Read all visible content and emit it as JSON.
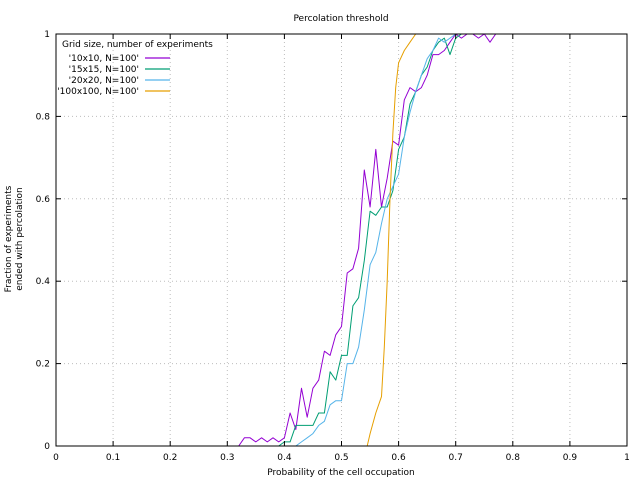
{
  "chart_data": {
    "type": "line",
    "title": "Percolation threshold",
    "xlabel": "Probability of the cell occupation",
    "ylabel_lines": [
      "Fraction of experiments",
      "ended with percolation"
    ],
    "xlim": [
      0,
      1
    ],
    "ylim": [
      0,
      1
    ],
    "x_ticks": [
      "0",
      "0.1",
      "0.2",
      "0.3",
      "0.4",
      "0.5",
      "0.6",
      "0.7",
      "0.8",
      "0.9",
      "1"
    ],
    "y_ticks": [
      "0",
      "0.2",
      "0.4",
      "0.6",
      "0.8",
      "1"
    ],
    "grid": true,
    "legend_title": "Grid size, number of experiments",
    "legend_position": "top-left",
    "series": [
      {
        "name": "'10x10, N=100'",
        "color": "#9400d3",
        "x": [
          0,
          0.32,
          0.33,
          0.34,
          0.35,
          0.36,
          0.37,
          0.38,
          0.39,
          0.4,
          0.41,
          0.42,
          0.43,
          0.44,
          0.45,
          0.46,
          0.47,
          0.48,
          0.49,
          0.5,
          0.51,
          0.52,
          0.53,
          0.54,
          0.55,
          0.56,
          0.57,
          0.58,
          0.59,
          0.6,
          0.61,
          0.62,
          0.63,
          0.64,
          0.65,
          0.66,
          0.67,
          0.68,
          0.69,
          0.7,
          0.71,
          0.72,
          0.73,
          0.74,
          0.75,
          0.76,
          0.77,
          0.78,
          1.0
        ],
        "y": [
          0,
          0,
          0.02,
          0.02,
          0.01,
          0.02,
          0.01,
          0.02,
          0.01,
          0.02,
          0.08,
          0.04,
          0.14,
          0.07,
          0.14,
          0.16,
          0.23,
          0.22,
          0.27,
          0.29,
          0.42,
          0.43,
          0.48,
          0.67,
          0.58,
          0.72,
          0.58,
          0.65,
          0.74,
          0.73,
          0.84,
          0.87,
          0.86,
          0.87,
          0.9,
          0.95,
          0.95,
          0.96,
          0.98,
          1,
          0.99,
          1,
          1,
          0.99,
          1,
          0.98,
          1,
          1,
          1
        ]
      },
      {
        "name": "'15x15, N=100'",
        "color": "#009e73",
        "x": [
          0,
          0.38,
          0.39,
          0.4,
          0.41,
          0.42,
          0.43,
          0.44,
          0.45,
          0.46,
          0.47,
          0.48,
          0.49,
          0.5,
          0.51,
          0.52,
          0.53,
          0.54,
          0.55,
          0.56,
          0.57,
          0.58,
          0.59,
          0.6,
          0.61,
          0.62,
          0.63,
          0.64,
          0.65,
          0.66,
          0.67,
          0.68,
          0.69,
          0.7,
          0.71,
          0.72,
          0.73,
          1.0
        ],
        "y": [
          0,
          0,
          0,
          0.01,
          0.01,
          0.05,
          0.05,
          0.05,
          0.05,
          0.08,
          0.08,
          0.18,
          0.16,
          0.22,
          0.22,
          0.34,
          0.36,
          0.45,
          0.57,
          0.56,
          0.58,
          0.58,
          0.62,
          0.72,
          0.75,
          0.83,
          0.86,
          0.9,
          0.92,
          0.96,
          0.98,
          0.99,
          0.95,
          0.99,
          1,
          1,
          1,
          1
        ]
      },
      {
        "name": "'20x20, N=100'",
        "color": "#56b4e9",
        "x": [
          0,
          0.41,
          0.42,
          0.43,
          0.44,
          0.45,
          0.46,
          0.47,
          0.48,
          0.49,
          0.5,
          0.51,
          0.52,
          0.53,
          0.54,
          0.55,
          0.56,
          0.57,
          0.58,
          0.59,
          0.6,
          0.61,
          0.62,
          0.63,
          0.64,
          0.65,
          0.66,
          0.67,
          0.68,
          0.69,
          0.7,
          0.71,
          0.72,
          1.0
        ],
        "y": [
          0,
          0,
          0,
          0.01,
          0.02,
          0.03,
          0.05,
          0.06,
          0.1,
          0.11,
          0.11,
          0.2,
          0.2,
          0.24,
          0.33,
          0.44,
          0.47,
          0.54,
          0.6,
          0.63,
          0.66,
          0.75,
          0.81,
          0.86,
          0.9,
          0.94,
          0.96,
          0.99,
          0.98,
          0.99,
          1,
          1,
          1,
          1
        ]
      },
      {
        "name": "'100x100, N=100'",
        "color": "#e69f00",
        "x": [
          0,
          0.545,
          0.55,
          0.56,
          0.57,
          0.575,
          0.58,
          0.585,
          0.59,
          0.595,
          0.6,
          0.61,
          0.62,
          0.63,
          0.64,
          1.0
        ],
        "y": [
          0,
          0,
          0.03,
          0.08,
          0.12,
          0.24,
          0.4,
          0.6,
          0.76,
          0.87,
          0.93,
          0.96,
          0.98,
          1,
          1,
          1
        ]
      }
    ]
  }
}
